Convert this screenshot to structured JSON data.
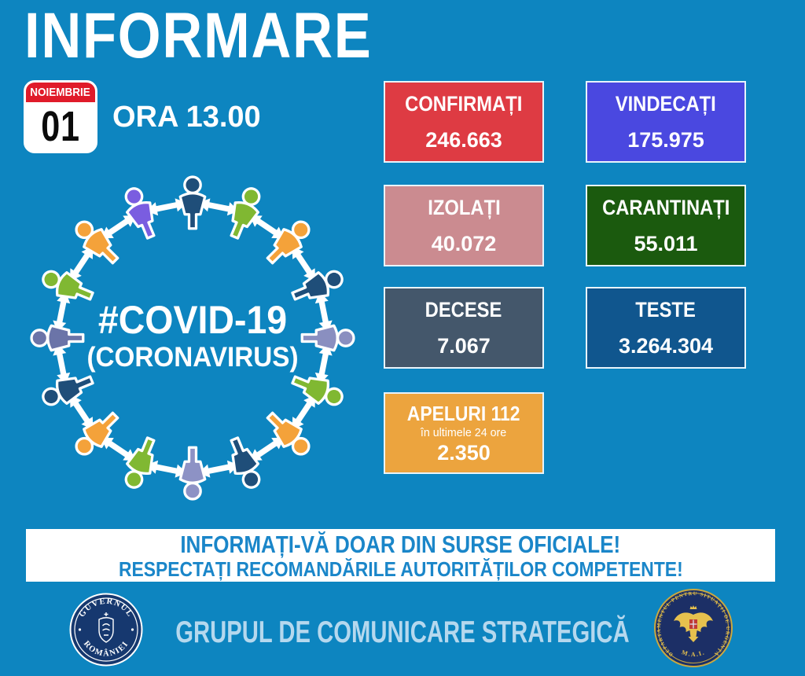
{
  "page": {
    "bg": "#0d85c0"
  },
  "header": {
    "title": "INFORMARE",
    "time": "ORA 13.00",
    "calendar": {
      "month": "NOIEMBRIE",
      "day": "01",
      "header_color": "#e01b2a"
    }
  },
  "illustration": {
    "hashtag_line": "#COVID-19",
    "subtitle_line": "(CORONAVIRUS)",
    "arrow_color": "#ffffff",
    "person_outline": "#ffffff",
    "person_colors": [
      "#1f4e79",
      "#80b832",
      "#f4a23a",
      "#1f4e79",
      "#8a8fc0",
      "#80b832",
      "#f4a23a",
      "#1f4e79",
      "#8d92c5",
      "#80b832",
      "#f4a23a",
      "#1f4e79",
      "#6b74a8",
      "#80b832",
      "#f4a23a",
      "#7a5de0"
    ]
  },
  "stats": {
    "confirmati": {
      "label": "CONFIRMAȚI",
      "value": "246.663",
      "bg": "#de3b43"
    },
    "vindecati": {
      "label": "VINDECAȚI",
      "value": "175.975",
      "bg": "#4a48e0"
    },
    "izolati": {
      "label": "IZOLAȚI",
      "value": "40.072",
      "bg": "#cb8b90"
    },
    "carantinati": {
      "label": "CARANTINAȚI",
      "value": "55.011",
      "bg": "#1b5a0e"
    },
    "decese": {
      "label": "DECESE",
      "value": "7.067",
      "bg": "#44576b"
    },
    "teste": {
      "label": "TESTE",
      "value": "3.264.304",
      "bg": "#10568e"
    },
    "apeluri": {
      "label": "APELURI 112",
      "sublabel": "în ultimele 24 ore",
      "value": "2.350",
      "bg": "#eca43e"
    }
  },
  "banner": {
    "line1": "INFORMAȚI-VĂ DOAR DIN SURSE OFICIALE!",
    "line2": "RESPECTAȚI RECOMANDĂRILE AUTORITĂȚILOR COMPETENTE!",
    "text_color": "#1a86c9"
  },
  "footer": {
    "caption": "GRUPUL DE COMUNICARE STRATEGICĂ",
    "caption_color": "#b5d8ee",
    "gov_seal": {
      "top": "GUVERNUL",
      "bottom": "ROMÂNIEI"
    },
    "dsu_seal": {
      "ring": "DEPARTAMENTUL PENTRU SITUAȚII DE URGENȚĂ",
      "bottom": "M.A.I."
    }
  }
}
